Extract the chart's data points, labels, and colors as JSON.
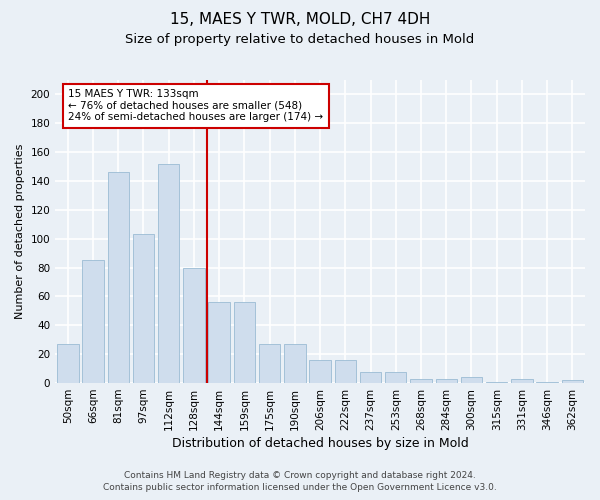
{
  "title1": "15, MAES Y TWR, MOLD, CH7 4DH",
  "title2": "Size of property relative to detached houses in Mold",
  "xlabel": "Distribution of detached houses by size in Mold",
  "ylabel": "Number of detached properties",
  "categories": [
    "50sqm",
    "66sqm",
    "81sqm",
    "97sqm",
    "112sqm",
    "128sqm",
    "144sqm",
    "159sqm",
    "175sqm",
    "190sqm",
    "206sqm",
    "222sqm",
    "237sqm",
    "253sqm",
    "268sqm",
    "284sqm",
    "300sqm",
    "315sqm",
    "331sqm",
    "346sqm",
    "362sqm"
  ],
  "values": [
    27,
    85,
    146,
    103,
    152,
    80,
    56,
    56,
    27,
    27,
    16,
    16,
    8,
    8,
    3,
    3,
    4,
    1,
    3,
    1,
    2
  ],
  "bar_color": "#cfdded",
  "bar_edge_color": "#9bbbd4",
  "vline_x": 5.5,
  "vline_color": "#cc0000",
  "annotation_title": "15 MAES Y TWR: 133sqm",
  "annotation_line1": "← 76% of detached houses are smaller (548)",
  "annotation_line2": "24% of semi-detached houses are larger (174) →",
  "annotation_box_facecolor": "#ffffff",
  "annotation_box_edgecolor": "#cc0000",
  "ylim": [
    0,
    210
  ],
  "yticks": [
    0,
    20,
    40,
    60,
    80,
    100,
    120,
    140,
    160,
    180,
    200
  ],
  "footer1": "Contains HM Land Registry data © Crown copyright and database right 2024.",
  "footer2": "Contains public sector information licensed under the Open Government Licence v3.0.",
  "background_color": "#eaf0f6",
  "grid_color": "#ffffff",
  "title1_fontsize": 11,
  "title2_fontsize": 9.5,
  "xlabel_fontsize": 9,
  "ylabel_fontsize": 8,
  "tick_fontsize": 7.5,
  "footer_fontsize": 6.5,
  "ann_fontsize": 7.5
}
